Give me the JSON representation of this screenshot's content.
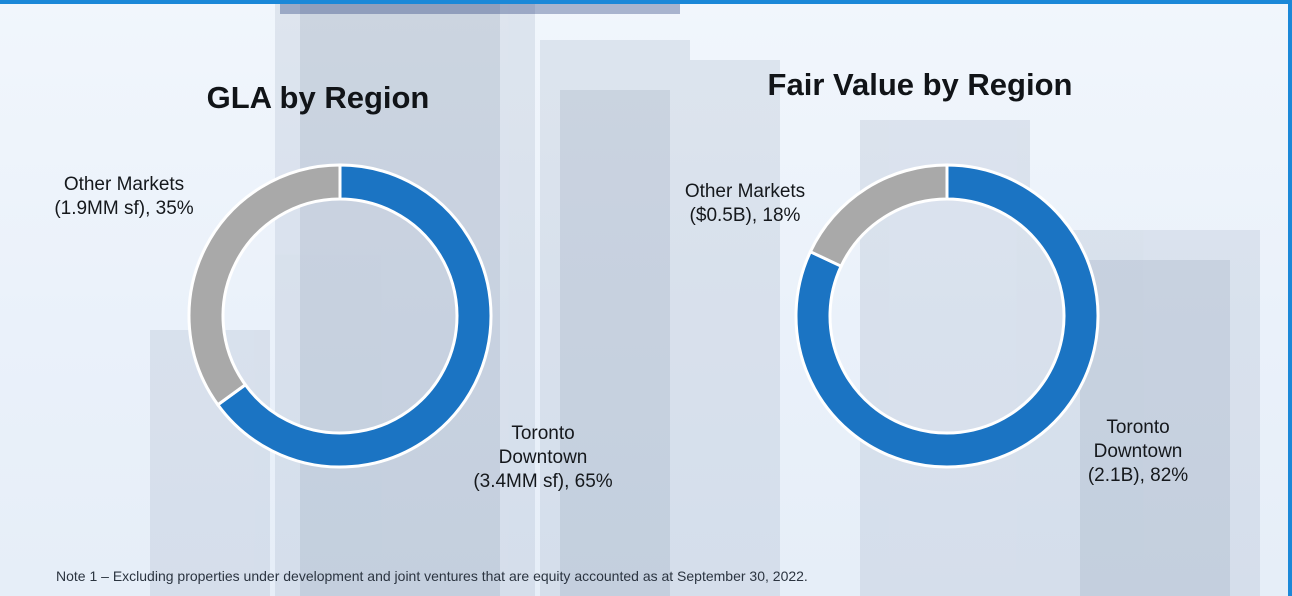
{
  "colors": {
    "toronto": "#1b74c3",
    "other": "#a9a9a9",
    "accent": "#1b88d8"
  },
  "footnote": "Note 1 – Excluding properties under development and joint ventures that are equity accounted as at September 30, 2022.",
  "chart_data": [
    {
      "type": "pie",
      "title": "GLA by Region",
      "categories": [
        "Toronto Downtown",
        "Other Markets"
      ],
      "values": [
        65,
        35
      ],
      "labels": [
        [
          "Toronto",
          "Downtown",
          "(3.4MM sf), 65%"
        ],
        [
          "Other Markets",
          "(1.9MM sf), 35%"
        ]
      ],
      "legend": "none"
    },
    {
      "type": "pie",
      "title": "Fair Value by Region",
      "categories": [
        "Toronto Downtown",
        "Other Markets"
      ],
      "values": [
        82,
        18
      ],
      "labels": [
        [
          "Toronto",
          "Downtown",
          "(2.1B), 82%"
        ],
        [
          "Other Markets",
          "($0.5B), 18%"
        ]
      ],
      "legend": "none"
    }
  ]
}
